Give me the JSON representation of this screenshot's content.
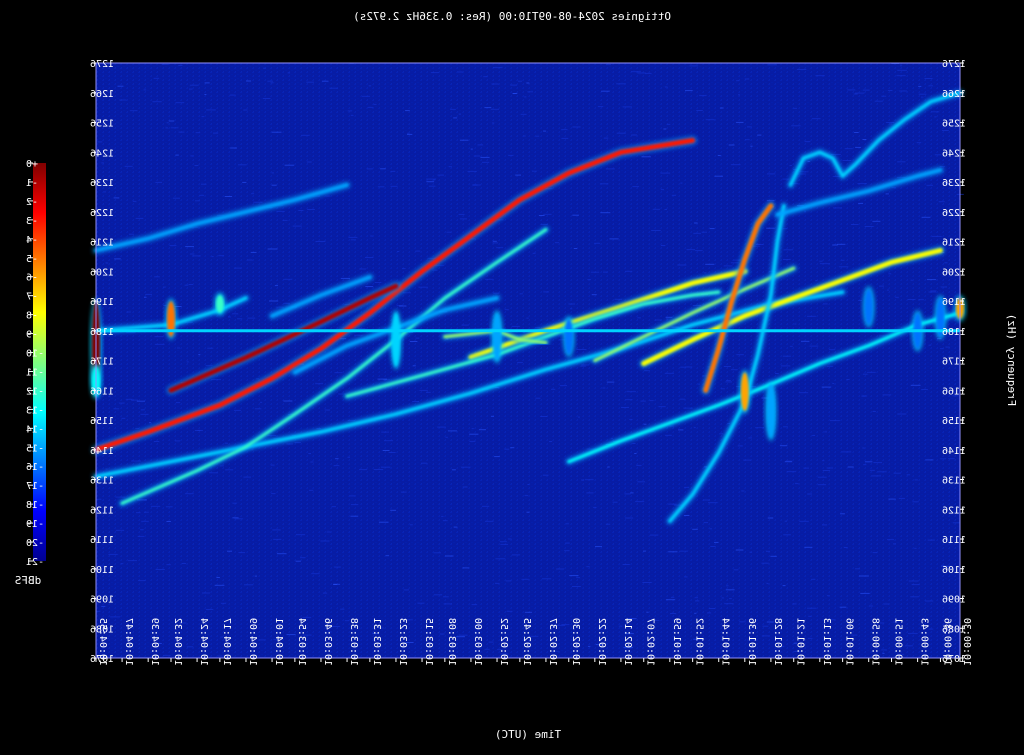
{
  "chart_data": {
    "type": "heatmap",
    "title": "Ottignies 2024-08-09T10:00 (Res: 0.336Hz 2.972s)",
    "xlabel": "Time (UTC)",
    "ylabel": "Frequency (Hz)",
    "colorbar_label": "dBFS",
    "mirrored": true,
    "xlim": [
      "10:04:55",
      "10:00:30"
    ],
    "ylim": [
      1076,
      1276
    ],
    "x_ticks": [
      "10:04:55",
      "10:04:47",
      "10:04:39",
      "10:04:32",
      "10:04:24",
      "10:04:17",
      "10:04:09",
      "10:04:01",
      "10:03:54",
      "10:03:46",
      "10:03:38",
      "10:03:31",
      "10:03:23",
      "10:03:15",
      "10:03:08",
      "10:03:00",
      "10:02:52",
      "10:02:45",
      "10:02:37",
      "10:02:30",
      "10:02:22",
      "10:02:14",
      "10:02:07",
      "10:01:59",
      "10:01:52",
      "10:01:44",
      "10:01:36",
      "10:01:28",
      "10:01:21",
      "10:01:13",
      "10:01:06",
      "10:00:58",
      "10:00:51",
      "10:00:43",
      "10:00:36",
      "10:00:30"
    ],
    "y_ticks": [
      1076,
      1086,
      1096,
      1106,
      1116,
      1126,
      1136,
      1146,
      1156,
      1166,
      1176,
      1186,
      1196,
      1206,
      1216,
      1226,
      1236,
      1246,
      1256,
      1266,
      1276
    ],
    "colorbar_ticks": [
      "+0",
      "-1",
      "-2",
      "-3",
      "-4",
      "-5",
      "-6",
      "-7",
      "-8",
      "-9",
      "-10",
      "-11",
      "-12",
      "-13",
      "-14",
      "-15",
      "-16",
      "-17",
      "-18",
      "-19",
      "-20",
      "-21"
    ],
    "background_level_dbfs": -19,
    "carrier": {
      "freq_hz": 1186,
      "level_dbfs": -14
    },
    "traces": [
      {
        "points": [
          [
            "10:04:55",
            1146
          ],
          [
            "10:04:39",
            1152
          ],
          [
            "10:04:17",
            1161
          ],
          [
            "10:04:01",
            1170
          ],
          [
            "10:03:46",
            1180
          ],
          [
            "10:03:31",
            1192
          ],
          [
            "10:03:15",
            1206
          ],
          [
            "10:03:00",
            1218
          ],
          [
            "10:02:45",
            1230
          ],
          [
            "10:02:30",
            1239
          ],
          [
            "10:02:14",
            1246
          ],
          [
            "10:01:52",
            1250
          ]
        ],
        "level_dbfs": -3
      },
      {
        "points": [
          [
            "10:04:55",
            1137
          ],
          [
            "10:04:32",
            1142
          ],
          [
            "10:04:09",
            1147
          ],
          [
            "10:03:46",
            1152
          ],
          [
            "10:03:23",
            1158
          ],
          [
            "10:03:00",
            1165
          ],
          [
            "10:02:37",
            1173
          ],
          [
            "10:02:14",
            1180
          ],
          [
            "10:01:52",
            1188
          ],
          [
            "10:01:28",
            1195
          ],
          [
            "10:01:06",
            1199
          ]
        ],
        "level_dbfs": -14
      },
      {
        "points": [
          [
            "10:04:47",
            1128
          ],
          [
            "10:04:24",
            1139
          ],
          [
            "10:04:09",
            1147
          ],
          [
            "10:03:54",
            1158
          ],
          [
            "10:03:38",
            1170
          ],
          [
            "10:03:23",
            1183
          ],
          [
            "10:03:08",
            1197
          ],
          [
            "10:02:52",
            1209
          ],
          [
            "10:02:37",
            1220
          ]
        ],
        "level_dbfs": -12
      },
      {
        "points": [
          [
            "10:04:32",
            1166
          ],
          [
            "10:04:09",
            1177
          ],
          [
            "10:03:46",
            1189
          ],
          [
            "10:03:31",
            1197
          ],
          [
            "10:03:23",
            1201
          ]
        ],
        "level_dbfs": -1
      },
      {
        "points": [
          [
            "10:03:00",
            1177
          ],
          [
            "10:02:37",
            1186
          ],
          [
            "10:02:14",
            1194
          ],
          [
            "10:01:52",
            1202
          ],
          [
            "10:01:36",
            1206
          ]
        ],
        "level_dbfs": -8
      },
      {
        "points": [
          [
            "10:02:07",
            1175
          ],
          [
            "10:01:52",
            1183
          ],
          [
            "10:01:36",
            1191
          ],
          [
            "10:01:21",
            1197
          ],
          [
            "10:01:06",
            1203
          ],
          [
            "10:00:51",
            1209
          ],
          [
            "10:00:36",
            1213
          ]
        ],
        "level_dbfs": -8
      },
      {
        "points": [
          [
            "10:02:22",
            1176
          ],
          [
            "10:02:07",
            1184
          ],
          [
            "10:01:52",
            1192
          ],
          [
            "10:01:36",
            1200
          ],
          [
            "10:01:21",
            1207
          ]
        ],
        "level_dbfs": -10
      },
      {
        "points": [
          [
            "10:03:38",
            1164
          ],
          [
            "10:03:15",
            1171
          ],
          [
            "10:02:52",
            1178
          ],
          [
            "10:02:37",
            1184
          ],
          [
            "10:02:22",
            1190
          ],
          [
            "10:02:07",
            1195
          ],
          [
            "10:01:52",
            1198
          ],
          [
            "10:01:44",
            1199
          ]
        ],
        "level_dbfs": -12
      },
      {
        "points": [
          [
            "10:02:30",
            1142
          ],
          [
            "10:02:14",
            1149
          ],
          [
            "10:01:59",
            1155
          ],
          [
            "10:01:44",
            1161
          ],
          [
            "10:01:28",
            1168
          ],
          [
            "10:01:13",
            1175
          ],
          [
            "10:00:58",
            1181
          ],
          [
            "10:00:43",
            1188
          ],
          [
            "10:00:30",
            1192
          ]
        ],
        "level_dbfs": -13
      },
      {
        "points": [
          [
            "10:03:08",
            1184
          ],
          [
            "10:02:52",
            1186
          ],
          [
            "10:02:45",
            1183
          ],
          [
            "10:02:37",
            1182
          ]
        ],
        "level_dbfs": -10
      },
      {
        "points": [
          [
            "10:04:55",
            1186
          ],
          [
            "10:04:32",
            1188
          ],
          [
            "10:04:17",
            1193
          ],
          [
            "10:04:09",
            1197
          ]
        ],
        "level_dbfs": -14
      },
      {
        "points": [
          [
            "10:04:55",
            1213
          ],
          [
            "10:04:39",
            1217
          ],
          [
            "10:04:24",
            1222
          ],
          [
            "10:04:09",
            1226
          ],
          [
            "10:03:54",
            1230
          ],
          [
            "10:03:38",
            1235
          ]
        ],
        "level_dbfs": -15
      },
      {
        "points": [
          [
            "10:04:01",
            1191
          ],
          [
            "10:03:46",
            1198
          ],
          [
            "10:03:31",
            1204
          ]
        ],
        "level_dbfs": -15
      },
      {
        "points": [
          [
            "10:01:59",
            1122
          ],
          [
            "10:01:52",
            1131
          ],
          [
            "10:01:44",
            1145
          ],
          [
            "10:01:36",
            1162
          ],
          [
            "10:01:32",
            1178
          ],
          [
            "10:01:28",
            1198
          ],
          [
            "10:01:26",
            1216
          ],
          [
            "10:01:24",
            1228
          ]
        ],
        "level_dbfs": -14
      },
      {
        "points": [
          [
            "10:01:48",
            1166
          ],
          [
            "10:01:44",
            1180
          ],
          [
            "10:01:40",
            1196
          ],
          [
            "10:01:36",
            1210
          ],
          [
            "10:01:32",
            1222
          ],
          [
            "10:01:28",
            1228
          ]
        ],
        "level_dbfs": -5
      },
      {
        "points": [
          [
            "10:01:26",
            1225
          ],
          [
            "10:01:13",
            1229
          ],
          [
            "10:00:58",
            1233
          ],
          [
            "10:00:43",
            1238
          ],
          [
            "10:00:36",
            1240
          ]
        ],
        "level_dbfs": -15
      },
      {
        "points": [
          [
            "10:01:22",
            1235
          ],
          [
            "10:01:18",
            1244
          ],
          [
            "10:01:13",
            1246
          ],
          [
            "10:01:09",
            1244
          ],
          [
            "10:01:06",
            1238
          ],
          [
            "10:01:02",
            1242
          ],
          [
            "10:00:55",
            1250
          ],
          [
            "10:00:47",
            1257
          ],
          [
            "10:00:39",
            1263
          ],
          [
            "10:00:30",
            1266
          ]
        ],
        "level_dbfs": -14
      },
      {
        "points": [
          [
            "10:03:54",
            1172
          ],
          [
            "10:03:38",
            1181
          ],
          [
            "10:03:23",
            1187
          ],
          [
            "10:03:08",
            1193
          ],
          [
            "10:02:52",
            1197
          ]
        ],
        "level_dbfs": -15
      }
    ],
    "bursts": [
      {
        "time": "10:04:55",
        "freq_range": [
          1166,
          1196
        ],
        "level_dbfs": 0
      },
      {
        "time": "10:04:55",
        "freq_range": [
          1164,
          1174
        ],
        "level_dbfs": -13
      },
      {
        "time": "10:04:32",
        "freq_range": [
          1184,
          1196
        ],
        "level_dbfs": -5
      },
      {
        "time": "10:04:17",
        "freq_range": [
          1192,
          1198
        ],
        "level_dbfs": -12
      },
      {
        "time": "10:03:23",
        "freq_range": [
          1174,
          1192
        ],
        "level_dbfs": -14
      },
      {
        "time": "10:02:52",
        "freq_range": [
          1176,
          1192
        ],
        "level_dbfs": -15
      },
      {
        "time": "10:02:30",
        "freq_range": [
          1178,
          1190
        ],
        "level_dbfs": -16
      },
      {
        "time": "10:01:36",
        "freq_range": [
          1159,
          1172
        ],
        "level_dbfs": -6
      },
      {
        "time": "10:01:28",
        "freq_range": [
          1150,
          1168
        ],
        "level_dbfs": -15
      },
      {
        "time": "10:00:58",
        "freq_range": [
          1188,
          1200
        ],
        "level_dbfs": -16
      },
      {
        "time": "10:00:43",
        "freq_range": [
          1180,
          1192
        ],
        "level_dbfs": -16
      },
      {
        "time": "10:00:36",
        "freq_range": [
          1184,
          1197
        ],
        "level_dbfs": -16
      },
      {
        "time": "10:00:30",
        "freq_range": [
          1190,
          1197
        ],
        "level_dbfs": -6
      }
    ],
    "grid": false,
    "colorbar_placement": "left"
  }
}
